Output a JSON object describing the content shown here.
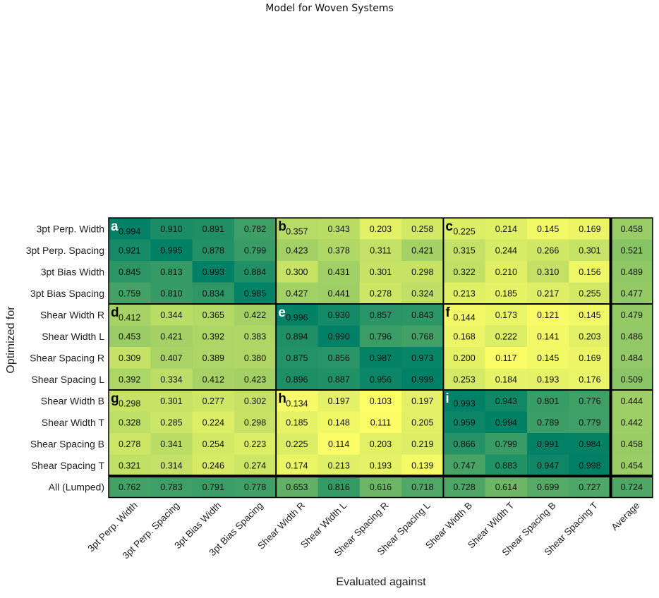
{
  "page": {
    "title": "Model for Woven Systems"
  },
  "chart_data": {
    "type": "heatmap",
    "title": "",
    "xlabel": "Evaluated against",
    "ylabel": "Optimized for",
    "colormap": "summer_r",
    "color_range": [
      0.1,
      1.0
    ],
    "color_low": "#ffff66",
    "color_high": "#008066",
    "rows": [
      "3pt Perp. Width",
      "3pt Perp. Spacing",
      "3pt Bias Width",
      "3pt Bias Spacing",
      "Shear Width R",
      "Shear Width L",
      "Shear Spacing R",
      "Shear Spacing L",
      "Shear Width B",
      "Shear Width T",
      "Shear Spacing B",
      "Shear Spacing T",
      "All (Lumped)"
    ],
    "columns": [
      "3pt Perp. Width",
      "3pt Perp. Spacing",
      "3pt Bias Width",
      "3pt Bias Spacing",
      "Shear Width R",
      "Shear Width L",
      "Shear Spacing R",
      "Shear Spacing L",
      "Shear Width B",
      "Shear Width T",
      "Shear Spacing B",
      "Shear Spacing T",
      "Average"
    ],
    "values": [
      [
        0.994,
        0.91,
        0.891,
        0.782,
        0.357,
        0.343,
        0.203,
        0.258,
        0.225,
        0.214,
        0.145,
        0.169,
        0.458
      ],
      [
        0.921,
        0.995,
        0.878,
        0.799,
        0.423,
        0.378,
        0.311,
        0.421,
        0.315,
        0.244,
        0.266,
        0.301,
        0.521
      ],
      [
        0.845,
        0.813,
        0.993,
        0.884,
        0.3,
        0.431,
        0.301,
        0.298,
        0.322,
        0.21,
        0.31,
        0.156,
        0.489
      ],
      [
        0.759,
        0.81,
        0.834,
        0.985,
        0.427,
        0.441,
        0.278,
        0.324,
        0.213,
        0.185,
        0.217,
        0.255,
        0.477
      ],
      [
        0.412,
        0.344,
        0.365,
        0.422,
        0.996,
        0.93,
        0.857,
        0.843,
        0.144,
        0.173,
        0.121,
        0.145,
        0.479
      ],
      [
        0.453,
        0.421,
        0.392,
        0.383,
        0.894,
        0.99,
        0.796,
        0.768,
        0.168,
        0.222,
        0.141,
        0.203,
        0.486
      ],
      [
        0.309,
        0.407,
        0.389,
        0.38,
        0.875,
        0.856,
        0.987,
        0.973,
        0.2,
        0.117,
        0.145,
        0.169,
        0.484
      ],
      [
        0.392,
        0.334,
        0.412,
        0.423,
        0.896,
        0.887,
        0.956,
        0.999,
        0.253,
        0.184,
        0.193,
        0.176,
        0.509
      ],
      [
        0.298,
        0.301,
        0.277,
        0.302,
        0.134,
        0.197,
        0.103,
        0.197,
        0.993,
        0.943,
        0.801,
        0.776,
        0.444
      ],
      [
        0.328,
        0.285,
        0.224,
        0.298,
        0.185,
        0.148,
        0.111,
        0.205,
        0.959,
        0.994,
        0.789,
        0.779,
        0.442
      ],
      [
        0.278,
        0.341,
        0.254,
        0.223,
        0.225,
        0.114,
        0.203,
        0.219,
        0.866,
        0.799,
        0.991,
        0.984,
        0.458
      ],
      [
        0.321,
        0.314,
        0.246,
        0.274,
        0.174,
        0.213,
        0.193,
        0.139,
        0.747,
        0.883,
        0.947,
        0.998,
        0.454
      ],
      [
        0.762,
        0.783,
        0.791,
        0.778,
        0.653,
        0.816,
        0.616,
        0.718,
        0.728,
        0.614,
        0.699,
        0.727,
        0.724
      ]
    ],
    "panels": [
      {
        "letter": "a",
        "row": 0,
        "col": 0
      },
      {
        "letter": "b",
        "row": 0,
        "col": 4
      },
      {
        "letter": "c",
        "row": 0,
        "col": 8
      },
      {
        "letter": "d",
        "row": 4,
        "col": 0
      },
      {
        "letter": "e",
        "row": 4,
        "col": 4
      },
      {
        "letter": "f",
        "row": 4,
        "col": 8
      },
      {
        "letter": "g",
        "row": 8,
        "col": 0
      },
      {
        "letter": "h",
        "row": 8,
        "col": 4
      },
      {
        "letter": "i",
        "row": 8,
        "col": 8
      }
    ]
  }
}
